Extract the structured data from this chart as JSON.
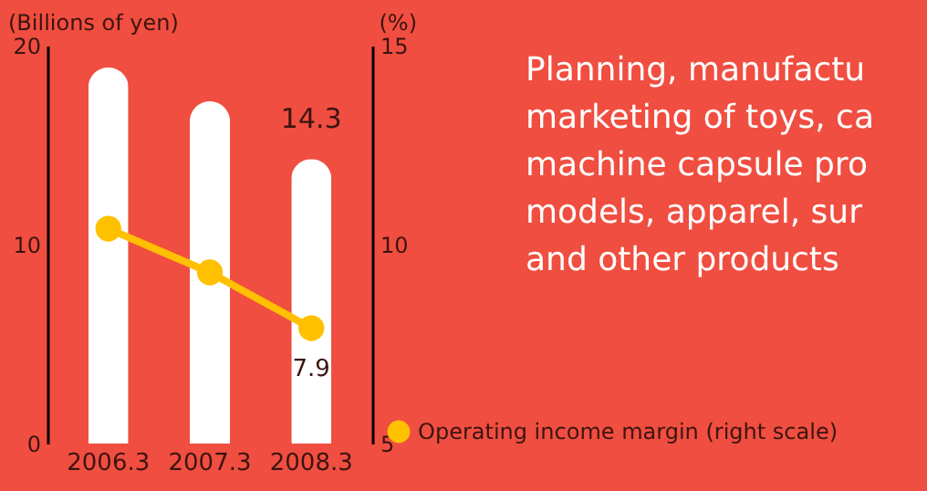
{
  "chart_data": {
    "type": "bar",
    "categories": [
      "2006.3",
      "2007.3",
      "2008.3"
    ],
    "ylabel": "(Billions of yen)",
    "y2label": "(%)",
    "ylim": [
      0,
      20
    ],
    "yticks": [
      0,
      10,
      20
    ],
    "y2lim": [
      5,
      15
    ],
    "y2ticks": [
      5,
      10,
      15
    ],
    "series": [
      {
        "color": "#ffffff",
        "values": [
          18.9,
          17.2,
          14.3
        ],
        "value_labels": [
          null,
          null,
          "14.3"
        ]
      },
      {
        "type": "line",
        "name": "Operating income margin (right scale)",
        "axis": "y2",
        "color": "#ffc000",
        "values": [
          10.4,
          9.3,
          7.9
        ],
        "value_labels": [
          null,
          null,
          "7.9"
        ]
      }
    ],
    "marker": "circle",
    "legend": "bottom right",
    "grid": false,
    "annotations": [
      "Planning, manufactu\nmarketing of toys, ca\nmachine capsule pro\nmodels, apparel, sur\nand other products"
    ]
  }
}
